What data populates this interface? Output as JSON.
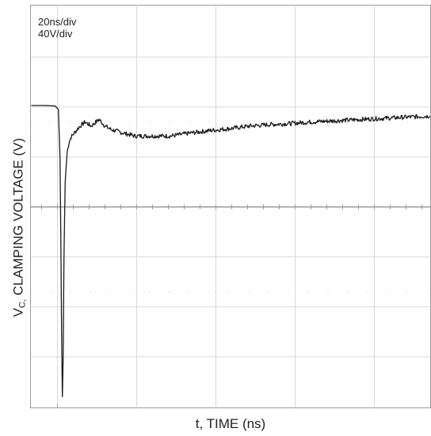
{
  "settings": {
    "time_div": "20ns/div",
    "volt_div": "40V/div"
  },
  "chart_data": {
    "type": "line",
    "xlabel": "t, TIME (ns)",
    "ylabel_main": "V",
    "ylabel_sub": "C,",
    "ylabel_rest": " CLAMPING VOLTAGE (V)",
    "time_per_div_ns": 20,
    "volts_per_div": 40,
    "grid": true,
    "xlim_div": [
      0,
      10
    ],
    "ylim_div": [
      -4,
      4
    ],
    "series": [
      {
        "points_div": [
          [
            0.0,
            2.03
          ],
          [
            0.35,
            2.03
          ],
          [
            0.6,
            2.02
          ],
          [
            0.68,
            1.95
          ],
          [
            0.72,
            1.0
          ],
          [
            0.74,
            -0.5
          ],
          [
            0.76,
            -2.5
          ],
          [
            0.78,
            -3.8
          ],
          [
            0.8,
            -3.0
          ],
          [
            0.82,
            -1.0
          ],
          [
            0.85,
            0.5
          ],
          [
            0.9,
            1.1
          ],
          [
            0.95,
            1.3
          ],
          [
            1.0,
            1.4
          ],
          [
            1.1,
            1.5
          ],
          [
            1.2,
            1.6
          ],
          [
            1.35,
            1.7
          ],
          [
            1.5,
            1.62
          ],
          [
            1.7,
            1.75
          ],
          [
            1.85,
            1.62
          ],
          [
            2.0,
            1.55
          ],
          [
            2.3,
            1.48
          ],
          [
            2.6,
            1.42
          ],
          [
            3.0,
            1.42
          ],
          [
            3.5,
            1.42
          ],
          [
            4.0,
            1.48
          ],
          [
            4.5,
            1.53
          ],
          [
            5.0,
            1.57
          ],
          [
            5.5,
            1.62
          ],
          [
            6.0,
            1.65
          ],
          [
            6.5,
            1.67
          ],
          [
            7.0,
            1.7
          ],
          [
            7.5,
            1.72
          ],
          [
            8.0,
            1.74
          ],
          [
            8.5,
            1.76
          ],
          [
            9.0,
            1.78
          ],
          [
            9.5,
            1.8
          ],
          [
            10.0,
            1.82
          ]
        ]
      }
    ]
  }
}
